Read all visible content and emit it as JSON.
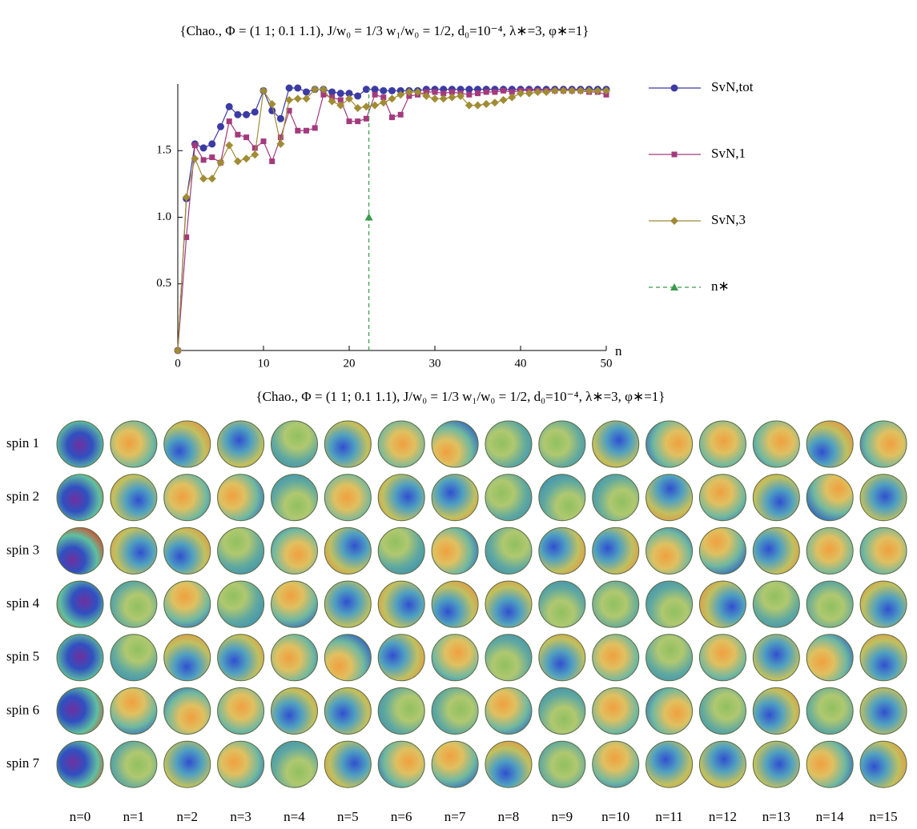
{
  "chart_data": {
    "type": "line",
    "title": "{Chao., Φ = (1 1; 0.1 1.1), J/w₀ = 1/3  w₁/w₀ = 1/2, d₀=10⁻⁴, λ∗=3, φ∗=1}",
    "x_label": "n",
    "x": [
      0,
      1,
      2,
      3,
      4,
      5,
      6,
      7,
      8,
      9,
      10,
      11,
      12,
      13,
      14,
      15,
      16,
      17,
      18,
      19,
      20,
      21,
      22,
      23,
      24,
      25,
      26,
      27,
      28,
      29,
      30,
      31,
      32,
      33,
      34,
      35,
      36,
      37,
      38,
      39,
      40,
      41,
      42,
      43,
      44,
      45,
      46,
      47,
      48,
      49,
      50
    ],
    "series": [
      {
        "name": "SvN,tot",
        "color": "#3b3ba3",
        "marker": "circle",
        "values": [
          0,
          1.14,
          1.55,
          1.52,
          1.55,
          1.68,
          1.83,
          1.77,
          1.77,
          1.79,
          1.95,
          1.8,
          1.74,
          1.97,
          1.97,
          1.94,
          1.96,
          1.96,
          1.94,
          1.93,
          1.93,
          1.91,
          1.96,
          1.96,
          1.95,
          1.95,
          1.95,
          1.95,
          1.95,
          1.96,
          1.96,
          1.96,
          1.96,
          1.96,
          1.96,
          1.96,
          1.96,
          1.96,
          1.96,
          1.96,
          1.96,
          1.96,
          1.96,
          1.96,
          1.96,
          1.96,
          1.96,
          1.96,
          1.96,
          1.96,
          1.96
        ]
      },
      {
        "name": "SvN,1",
        "color": "#a33a7c",
        "marker": "square",
        "values": [
          0,
          0.85,
          1.54,
          1.43,
          1.45,
          1.41,
          1.72,
          1.62,
          1.6,
          1.52,
          1.57,
          1.42,
          1.6,
          1.8,
          1.65,
          1.65,
          1.67,
          1.92,
          1.9,
          1.88,
          1.72,
          1.72,
          1.74,
          1.92,
          1.9,
          1.75,
          1.77,
          1.91,
          1.92,
          1.94,
          1.94,
          1.93,
          1.94,
          1.93,
          1.92,
          1.93,
          1.94,
          1.94,
          1.95,
          1.94,
          1.95,
          1.95,
          1.95,
          1.95,
          1.95,
          1.95,
          1.95,
          1.95,
          1.94,
          1.94,
          1.92
        ]
      },
      {
        "name": "SvN,3",
        "color": "#a08c34",
        "marker": "diamond",
        "values": [
          0,
          1.15,
          1.44,
          1.29,
          1.29,
          1.41,
          1.54,
          1.42,
          1.44,
          1.47,
          1.95,
          1.85,
          1.55,
          1.88,
          1.89,
          1.89,
          1.96,
          1.96,
          1.87,
          1.84,
          1.89,
          1.82,
          1.83,
          1.84,
          1.86,
          1.89,
          1.92,
          1.94,
          1.94,
          1.91,
          1.89,
          1.89,
          1.9,
          1.91,
          1.84,
          1.84,
          1.85,
          1.86,
          1.88,
          1.9,
          1.93,
          1.93,
          1.94,
          1.94,
          1.95,
          1.95,
          1.95,
          1.95,
          1.95,
          1.95,
          1.95
        ]
      }
    ],
    "threshold": {
      "name": "n∗",
      "color": "#3a9a4a",
      "x": [
        22.3,
        22.3
      ],
      "values": [
        0,
        1.96
      ],
      "marker_x": 22.3,
      "marker_value": 1
    },
    "xlim": [
      0,
      50
    ],
    "xticks": [
      0,
      10,
      20,
      30,
      40,
      50
    ],
    "ylim": [
      0,
      2
    ],
    "yticks": [
      0.5,
      {
        "value": 1,
        "label": "1.0"
      },
      1.5
    ],
    "legend": "right"
  },
  "grid": {
    "title": "{Chao., Φ = (1 1; 0.1 1.1), J/w₀ = 1/3  w₁/w₀ = 1/2, d₀=10⁻⁴, λ∗=3, φ∗=1}",
    "row_labels": [
      "spin 1",
      "spin 2",
      "spin 3",
      "spin 4",
      "spin 5",
      "spin 6",
      "spin 7"
    ],
    "column_labels": [
      "n=0",
      "n=1",
      "n=2",
      "n=3",
      "n=4",
      "n=5",
      "n=6",
      "n=7",
      "n=8",
      "n=9",
      "n=10",
      "n=11",
      "n=12",
      "n=13",
      "n=14",
      "n=15"
    ]
  }
}
